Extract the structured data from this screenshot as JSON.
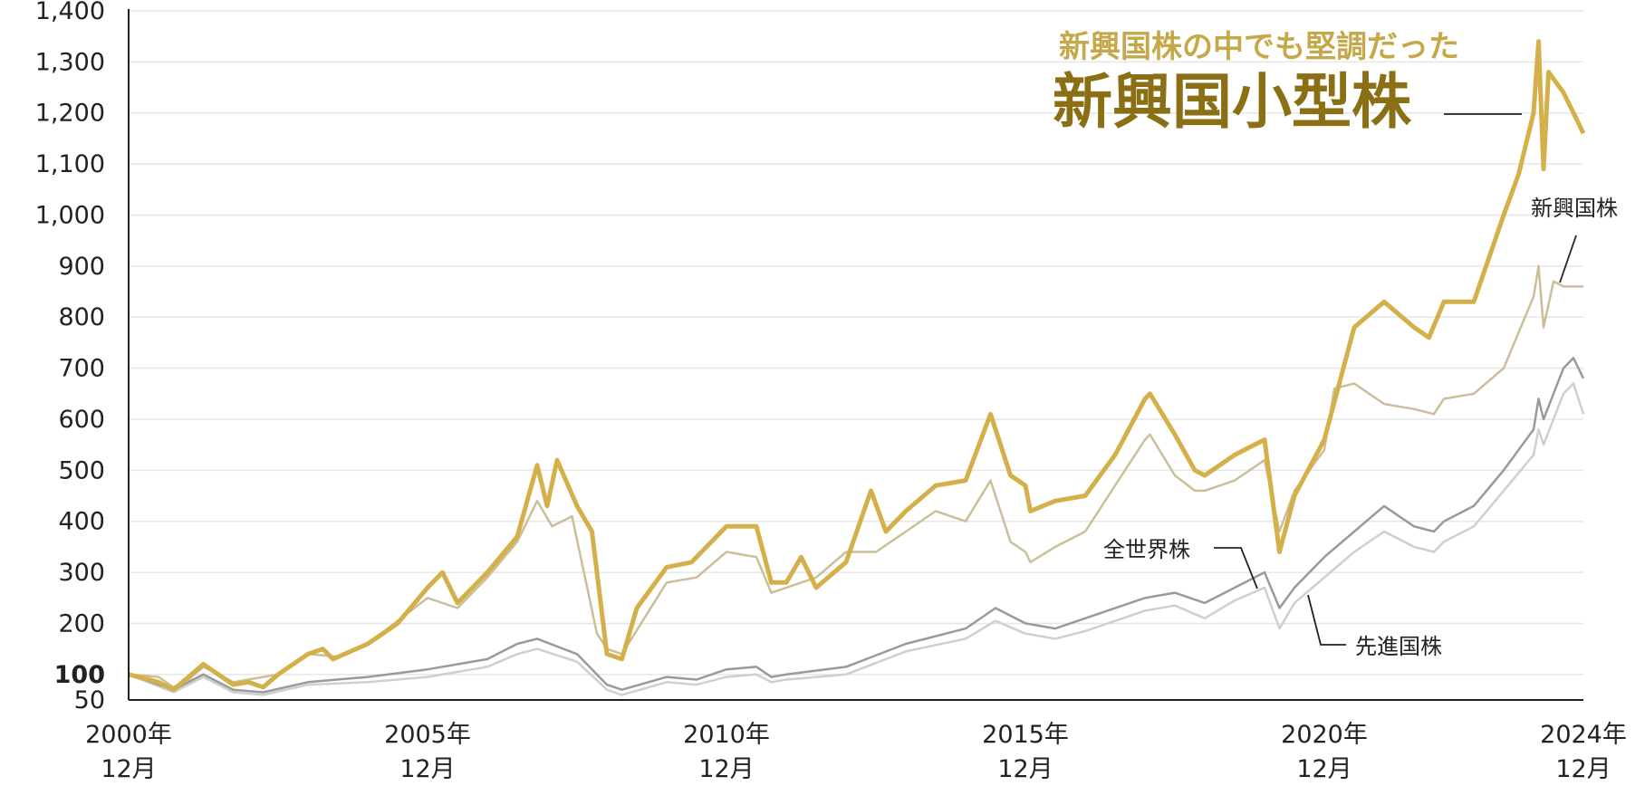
{
  "chart_data": {
    "type": "line",
    "title": "",
    "xlabel": "",
    "ylabel": "",
    "headline": {
      "sub": "新興国株の中でも堅調だった",
      "main": "新興国小型株"
    },
    "y_ticks": [
      "50",
      "100",
      "200",
      "300",
      "400",
      "500",
      "600",
      "700",
      "800",
      "900",
      "1,000",
      "1,100",
      "1,200",
      "1,300",
      "1,400"
    ],
    "x_ticks": [
      {
        "year": "2000年",
        "month": "12月"
      },
      {
        "year": "2005年",
        "month": "12月"
      },
      {
        "year": "2010年",
        "month": "12月"
      },
      {
        "year": "2015年",
        "month": "12月"
      },
      {
        "year": "2020年",
        "month": "12月"
      },
      {
        "year": "2024年",
        "month": "12月"
      }
    ],
    "ylim": [
      50,
      1400
    ],
    "xlim": [
      "2000-12",
      "2025-04"
    ],
    "grid": true,
    "legend": "inline labels",
    "series": [
      {
        "name": "新興国小型株",
        "color": "#d4b04a",
        "points": [
          [
            "2000-12",
            100
          ],
          [
            "2001-06",
            85
          ],
          [
            "2001-09",
            70
          ],
          [
            "2001-12",
            95
          ],
          [
            "2002-03",
            120
          ],
          [
            "2002-06",
            100
          ],
          [
            "2002-09",
            80
          ],
          [
            "2002-12",
            85
          ],
          [
            "2003-03",
            75
          ],
          [
            "2003-06",
            100
          ],
          [
            "2003-12",
            140
          ],
          [
            "2004-03",
            150
          ],
          [
            "2004-05",
            130
          ],
          [
            "2004-12",
            160
          ],
          [
            "2005-06",
            200
          ],
          [
            "2005-12",
            270
          ],
          [
            "2006-03",
            300
          ],
          [
            "2006-06",
            240
          ],
          [
            "2006-12",
            300
          ],
          [
            "2007-06",
            370
          ],
          [
            "2007-10",
            510
          ],
          [
            "2007-12",
            430
          ],
          [
            "2008-02",
            520
          ],
          [
            "2008-06",
            430
          ],
          [
            "2008-09",
            380
          ],
          [
            "2008-12",
            140
          ],
          [
            "2009-03",
            130
          ],
          [
            "2009-06",
            230
          ],
          [
            "2009-12",
            310
          ],
          [
            "2010-05",
            320
          ],
          [
            "2010-12",
            390
          ],
          [
            "2011-06",
            390
          ],
          [
            "2011-09",
            280
          ],
          [
            "2011-12",
            280
          ],
          [
            "2012-03",
            330
          ],
          [
            "2012-06",
            270
          ],
          [
            "2012-12",
            320
          ],
          [
            "2013-05",
            460
          ],
          [
            "2013-08",
            380
          ],
          [
            "2013-12",
            420
          ],
          [
            "2014-06",
            470
          ],
          [
            "2014-12",
            480
          ],
          [
            "2015-05",
            610
          ],
          [
            "2015-09",
            490
          ],
          [
            "2015-12",
            470
          ],
          [
            "2016-01",
            420
          ],
          [
            "2016-06",
            440
          ],
          [
            "2016-12",
            450
          ],
          [
            "2017-06",
            530
          ],
          [
            "2017-12",
            640
          ],
          [
            "2018-01",
            650
          ],
          [
            "2018-06",
            570
          ],
          [
            "2018-10",
            500
          ],
          [
            "2018-12",
            490
          ],
          [
            "2019-06",
            530
          ],
          [
            "2019-12",
            560
          ],
          [
            "2020-03",
            340
          ],
          [
            "2020-06",
            450
          ],
          [
            "2020-12",
            560
          ],
          [
            "2021-06",
            780
          ],
          [
            "2021-12",
            830
          ],
          [
            "2022-06",
            780
          ],
          [
            "2022-09",
            760
          ],
          [
            "2022-12",
            830
          ],
          [
            "2023-06",
            830
          ],
          [
            "2023-12",
            1000
          ],
          [
            "2024-03",
            1080
          ],
          [
            "2024-06",
            1200
          ],
          [
            "2024-07",
            1340
          ],
          [
            "2024-08",
            1090
          ],
          [
            "2024-09",
            1280
          ],
          [
            "2024-12",
            1240
          ],
          [
            "2025-02",
            1200
          ],
          [
            "2025-04",
            1160
          ]
        ]
      },
      {
        "name": "新興国株",
        "color": "#cbbf99",
        "points": [
          [
            "2000-12",
            100
          ],
          [
            "2001-06",
            95
          ],
          [
            "2001-09",
            75
          ],
          [
            "2001-12",
            90
          ],
          [
            "2002-03",
            115
          ],
          [
            "2002-09",
            85
          ],
          [
            "2002-12",
            90
          ],
          [
            "2003-06",
            100
          ],
          [
            "2003-12",
            140
          ],
          [
            "2004-06",
            135
          ],
          [
            "2004-12",
            160
          ],
          [
            "2005-12",
            250
          ],
          [
            "2006-06",
            230
          ],
          [
            "2006-12",
            290
          ],
          [
            "2007-06",
            360
          ],
          [
            "2007-10",
            440
          ],
          [
            "2008-01",
            390
          ],
          [
            "2008-05",
            410
          ],
          [
            "2008-10",
            180
          ],
          [
            "2008-12",
            150
          ],
          [
            "2009-03",
            140
          ],
          [
            "2009-12",
            280
          ],
          [
            "2010-06",
            290
          ],
          [
            "2010-12",
            340
          ],
          [
            "2011-06",
            330
          ],
          [
            "2011-09",
            260
          ],
          [
            "2011-12",
            270
          ],
          [
            "2012-06",
            290
          ],
          [
            "2012-12",
            340
          ],
          [
            "2013-06",
            340
          ],
          [
            "2013-12",
            380
          ],
          [
            "2014-06",
            420
          ],
          [
            "2014-12",
            400
          ],
          [
            "2015-05",
            480
          ],
          [
            "2015-09",
            360
          ],
          [
            "2015-12",
            340
          ],
          [
            "2016-01",
            320
          ],
          [
            "2016-06",
            350
          ],
          [
            "2016-12",
            380
          ],
          [
            "2017-06",
            470
          ],
          [
            "2017-12",
            560
          ],
          [
            "2018-01",
            570
          ],
          [
            "2018-06",
            490
          ],
          [
            "2018-10",
            460
          ],
          [
            "2018-12",
            460
          ],
          [
            "2019-06",
            480
          ],
          [
            "2019-12",
            520
          ],
          [
            "2020-03",
            380
          ],
          [
            "2020-06",
            460
          ],
          [
            "2020-12",
            540
          ],
          [
            "2021-02",
            660
          ],
          [
            "2021-06",
            670
          ],
          [
            "2021-12",
            630
          ],
          [
            "2022-06",
            620
          ],
          [
            "2022-10",
            610
          ],
          [
            "2022-12",
            640
          ],
          [
            "2023-06",
            650
          ],
          [
            "2023-12",
            700
          ],
          [
            "2024-06",
            840
          ],
          [
            "2024-07",
            900
          ],
          [
            "2024-08",
            780
          ],
          [
            "2024-10",
            870
          ],
          [
            "2024-12",
            860
          ],
          [
            "2025-04",
            860
          ]
        ]
      },
      {
        "name": "全世界株",
        "color": "#9a9a9a",
        "points": [
          [
            "2000-12",
            100
          ],
          [
            "2001-09",
            70
          ],
          [
            "2002-03",
            100
          ],
          [
            "2002-09",
            70
          ],
          [
            "2003-03",
            65
          ],
          [
            "2003-12",
            85
          ],
          [
            "2004-12",
            95
          ],
          [
            "2005-12",
            110
          ],
          [
            "2006-12",
            130
          ],
          [
            "2007-06",
            160
          ],
          [
            "2007-10",
            170
          ],
          [
            "2008-06",
            140
          ],
          [
            "2008-12",
            80
          ],
          [
            "2009-03",
            70
          ],
          [
            "2009-12",
            95
          ],
          [
            "2010-06",
            90
          ],
          [
            "2010-12",
            110
          ],
          [
            "2011-06",
            115
          ],
          [
            "2011-09",
            95
          ],
          [
            "2011-12",
            100
          ],
          [
            "2012-12",
            115
          ],
          [
            "2013-12",
            160
          ],
          [
            "2014-12",
            190
          ],
          [
            "2015-06",
            230
          ],
          [
            "2015-12",
            200
          ],
          [
            "2016-06",
            190
          ],
          [
            "2016-12",
            210
          ],
          [
            "2017-12",
            250
          ],
          [
            "2018-06",
            260
          ],
          [
            "2018-12",
            240
          ],
          [
            "2019-06",
            270
          ],
          [
            "2019-12",
            300
          ],
          [
            "2020-03",
            230
          ],
          [
            "2020-06",
            270
          ],
          [
            "2020-12",
            330
          ],
          [
            "2021-06",
            380
          ],
          [
            "2021-12",
            430
          ],
          [
            "2022-06",
            390
          ],
          [
            "2022-10",
            380
          ],
          [
            "2022-12",
            400
          ],
          [
            "2023-06",
            430
          ],
          [
            "2023-12",
            500
          ],
          [
            "2024-06",
            580
          ],
          [
            "2024-07",
            640
          ],
          [
            "2024-08",
            600
          ],
          [
            "2024-12",
            700
          ],
          [
            "2025-02",
            720
          ],
          [
            "2025-04",
            680
          ]
        ]
      },
      {
        "name": "先進国株",
        "color": "#cfcfcf",
        "points": [
          [
            "2000-12",
            100
          ],
          [
            "2001-09",
            65
          ],
          [
            "2002-03",
            95
          ],
          [
            "2002-09",
            65
          ],
          [
            "2003-03",
            60
          ],
          [
            "2003-12",
            80
          ],
          [
            "2004-12",
            85
          ],
          [
            "2005-12",
            95
          ],
          [
            "2006-12",
            115
          ],
          [
            "2007-06",
            140
          ],
          [
            "2007-10",
            150
          ],
          [
            "2008-06",
            125
          ],
          [
            "2008-12",
            70
          ],
          [
            "2009-03",
            60
          ],
          [
            "2009-12",
            85
          ],
          [
            "2010-06",
            80
          ],
          [
            "2010-12",
            95
          ],
          [
            "2011-06",
            100
          ],
          [
            "2011-09",
            85
          ],
          [
            "2011-12",
            90
          ],
          [
            "2012-12",
            100
          ],
          [
            "2013-12",
            145
          ],
          [
            "2014-12",
            170
          ],
          [
            "2015-06",
            205
          ],
          [
            "2015-12",
            180
          ],
          [
            "2016-06",
            170
          ],
          [
            "2016-12",
            185
          ],
          [
            "2017-12",
            225
          ],
          [
            "2018-06",
            235
          ],
          [
            "2018-12",
            210
          ],
          [
            "2019-06",
            245
          ],
          [
            "2019-12",
            270
          ],
          [
            "2020-03",
            190
          ],
          [
            "2020-06",
            240
          ],
          [
            "2020-12",
            290
          ],
          [
            "2021-06",
            340
          ],
          [
            "2021-12",
            380
          ],
          [
            "2022-06",
            350
          ],
          [
            "2022-10",
            340
          ],
          [
            "2022-12",
            360
          ],
          [
            "2023-06",
            390
          ],
          [
            "2023-12",
            460
          ],
          [
            "2024-06",
            530
          ],
          [
            "2024-07",
            580
          ],
          [
            "2024-08",
            550
          ],
          [
            "2024-12",
            650
          ],
          [
            "2025-02",
            670
          ],
          [
            "2025-04",
            610
          ]
        ]
      }
    ],
    "annotations": [
      {
        "text": "全世界株",
        "series": "全世界株"
      },
      {
        "text": "先進国株",
        "series": "先進国株"
      },
      {
        "text": "新興国株",
        "series": "新興国株"
      }
    ]
  }
}
